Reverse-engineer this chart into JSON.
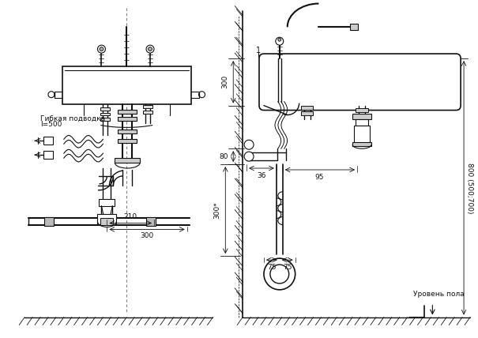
{
  "bg_color": "#ffffff",
  "lc": "#111111",
  "annotations": {
    "gibkaya": "Гибкая подводка",
    "l500": "l=500",
    "dim_210": "210",
    "dim_300_left": "300",
    "dim_300_top": "300",
    "dim_80": "80",
    "dim_36": "36",
    "dim_95": "95",
    "dim_300star": "300*",
    "dim_75a": "75",
    "dim_75b": "75",
    "dim_800": "800 (500;700)",
    "urovень": "Уровень пола",
    "label_1": "1"
  }
}
